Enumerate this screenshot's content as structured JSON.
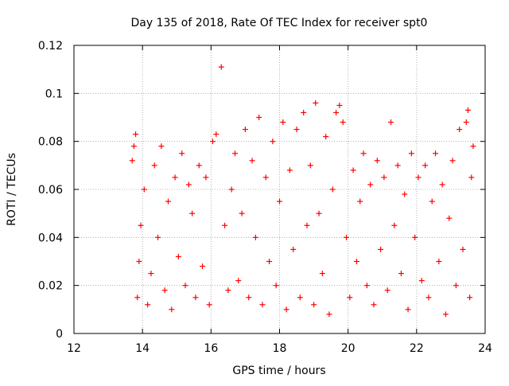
{
  "chart_data": {
    "type": "scatter",
    "title": "Day 135 of 2018, Rate Of TEC Index for receiver spt0",
    "xlabel": "GPS time / hours",
    "ylabel": "ROTI / TECUs",
    "xlim": [
      12,
      24
    ],
    "ylim": [
      0,
      0.12
    ],
    "x_ticks": [
      12,
      14,
      16,
      18,
      20,
      22,
      24
    ],
    "x_tick_labels": [
      "12",
      "14",
      "16",
      "18",
      "20",
      "22",
      "24"
    ],
    "y_ticks": [
      0,
      0.02,
      0.04,
      0.06,
      0.08,
      0.1,
      0.12
    ],
    "y_tick_labels": [
      "0",
      "0.02",
      "0.04",
      "0.06",
      "0.08",
      "0.1",
      "0.12"
    ],
    "grid": true,
    "marker": "+",
    "color": "#ff0000",
    "series": [
      {
        "name": "ROTI",
        "points": [
          [
            13.7,
            0.072
          ],
          [
            13.75,
            0.078
          ],
          [
            13.8,
            0.083
          ],
          [
            13.85,
            0.015
          ],
          [
            13.9,
            0.03
          ],
          [
            13.95,
            0.045
          ],
          [
            14.05,
            0.06
          ],
          [
            14.15,
            0.012
          ],
          [
            14.25,
            0.025
          ],
          [
            14.35,
            0.07
          ],
          [
            14.45,
            0.04
          ],
          [
            14.55,
            0.078
          ],
          [
            14.65,
            0.018
          ],
          [
            14.75,
            0.055
          ],
          [
            14.85,
            0.01
          ],
          [
            14.95,
            0.065
          ],
          [
            15.05,
            0.032
          ],
          [
            15.15,
            0.075
          ],
          [
            15.25,
            0.02
          ],
          [
            15.35,
            0.062
          ],
          [
            15.45,
            0.05
          ],
          [
            15.55,
            0.015
          ],
          [
            15.65,
            0.07
          ],
          [
            15.75,
            0.028
          ],
          [
            15.85,
            0.065
          ],
          [
            15.95,
            0.012
          ],
          [
            16.05,
            0.08
          ],
          [
            16.15,
            0.083
          ],
          [
            16.3,
            0.111
          ],
          [
            16.4,
            0.045
          ],
          [
            16.5,
            0.018
          ],
          [
            16.6,
            0.06
          ],
          [
            16.7,
            0.075
          ],
          [
            16.8,
            0.022
          ],
          [
            16.9,
            0.05
          ],
          [
            17.0,
            0.085
          ],
          [
            17.1,
            0.015
          ],
          [
            17.2,
            0.072
          ],
          [
            17.3,
            0.04
          ],
          [
            17.4,
            0.09
          ],
          [
            17.5,
            0.012
          ],
          [
            17.6,
            0.065
          ],
          [
            17.7,
            0.03
          ],
          [
            17.8,
            0.08
          ],
          [
            17.9,
            0.02
          ],
          [
            18.0,
            0.055
          ],
          [
            18.1,
            0.088
          ],
          [
            18.2,
            0.01
          ],
          [
            18.3,
            0.068
          ],
          [
            18.4,
            0.035
          ],
          [
            18.5,
            0.085
          ],
          [
            18.6,
            0.015
          ],
          [
            18.7,
            0.092
          ],
          [
            18.8,
            0.045
          ],
          [
            18.9,
            0.07
          ],
          [
            19.0,
            0.012
          ],
          [
            19.05,
            0.096
          ],
          [
            19.15,
            0.05
          ],
          [
            19.25,
            0.025
          ],
          [
            19.35,
            0.082
          ],
          [
            19.45,
            0.008
          ],
          [
            19.55,
            0.06
          ],
          [
            19.65,
            0.092
          ],
          [
            19.75,
            0.095
          ],
          [
            19.85,
            0.088
          ],
          [
            19.95,
            0.04
          ],
          [
            20.05,
            0.015
          ],
          [
            20.15,
            0.068
          ],
          [
            20.25,
            0.03
          ],
          [
            20.35,
            0.055
          ],
          [
            20.45,
            0.075
          ],
          [
            20.55,
            0.02
          ],
          [
            20.65,
            0.062
          ],
          [
            20.75,
            0.012
          ],
          [
            20.85,
            0.072
          ],
          [
            20.95,
            0.035
          ],
          [
            21.05,
            0.065
          ],
          [
            21.15,
            0.018
          ],
          [
            21.25,
            0.088
          ],
          [
            21.35,
            0.045
          ],
          [
            21.45,
            0.07
          ],
          [
            21.55,
            0.025
          ],
          [
            21.65,
            0.058
          ],
          [
            21.75,
            0.01
          ],
          [
            21.85,
            0.075
          ],
          [
            21.95,
            0.04
          ],
          [
            22.05,
            0.065
          ],
          [
            22.15,
            0.022
          ],
          [
            22.25,
            0.07
          ],
          [
            22.35,
            0.015
          ],
          [
            22.45,
            0.055
          ],
          [
            22.55,
            0.075
          ],
          [
            22.65,
            0.03
          ],
          [
            22.75,
            0.062
          ],
          [
            22.85,
            0.008
          ],
          [
            22.95,
            0.048
          ],
          [
            23.05,
            0.072
          ],
          [
            23.15,
            0.02
          ],
          [
            23.25,
            0.085
          ],
          [
            23.35,
            0.035
          ],
          [
            23.45,
            0.088
          ],
          [
            23.5,
            0.093
          ],
          [
            23.55,
            0.015
          ],
          [
            23.6,
            0.065
          ],
          [
            23.65,
            0.078
          ]
        ]
      }
    ]
  }
}
